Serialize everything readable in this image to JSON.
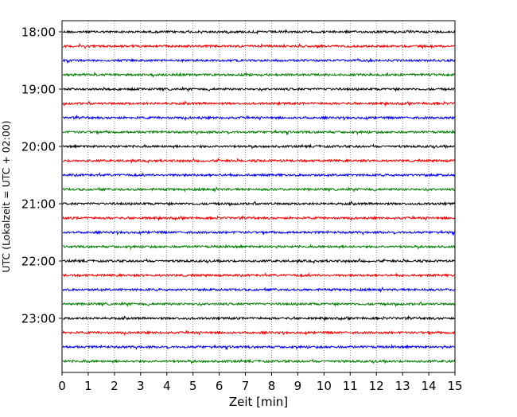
{
  "chart_data": {
    "type": "line",
    "title": "",
    "xlabel": "Zeit  [min]",
    "ylabel": "UTC (Lokalzeit = UTC + 02:00)",
    "xlim": [
      0,
      15
    ],
    "x_ticks": [
      "0",
      "1",
      "2",
      "3",
      "4",
      "5",
      "6",
      "7",
      "8",
      "9",
      "10",
      "11",
      "12",
      "13",
      "14",
      "15"
    ],
    "y_ticks": [
      "18:00",
      "19:00",
      "20:00",
      "21:00",
      "22:00",
      "23:00"
    ],
    "grid": "vertical dotted at each minute",
    "trace_colors": [
      "#000000",
      "#ff0000",
      "#0000ff",
      "#008000"
    ],
    "series": [
      {
        "name": "18:00"
      },
      {
        "name": "18:15"
      },
      {
        "name": "18:30"
      },
      {
        "name": "18:45"
      },
      {
        "name": "19:00"
      },
      {
        "name": "19:15"
      },
      {
        "name": "19:30"
      },
      {
        "name": "19:45"
      },
      {
        "name": "20:00"
      },
      {
        "name": "20:15"
      },
      {
        "name": "20:30"
      },
      {
        "name": "20:45"
      },
      {
        "name": "21:00"
      },
      {
        "name": "21:15"
      },
      {
        "name": "21:30"
      },
      {
        "name": "21:45"
      },
      {
        "name": "22:00"
      },
      {
        "name": "22:15"
      },
      {
        "name": "22:30"
      },
      {
        "name": "22:45"
      },
      {
        "name": "23:00"
      },
      {
        "name": "23:15"
      },
      {
        "name": "23:30"
      },
      {
        "name": "23:45"
      }
    ]
  }
}
